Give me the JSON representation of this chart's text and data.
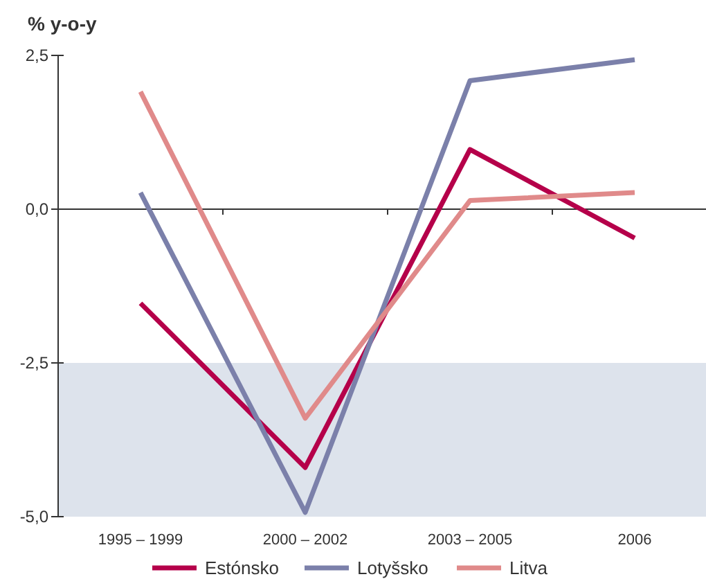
{
  "chart_data": {
    "type": "line",
    "ylabel": "% y-o-y",
    "categories": [
      "1995 – 1999",
      "2000 – 2002",
      "2003 – 2005",
      "2006"
    ],
    "series": [
      {
        "name": "Estónsko",
        "color": "#b5004a",
        "values": [
          -1.53,
          -4.2,
          0.97,
          -0.47
        ]
      },
      {
        "name": "Lotyšsko",
        "color": "#7b80aa",
        "values": [
          0.27,
          -4.93,
          2.09,
          2.43
        ]
      },
      {
        "name": "Litva",
        "color": "#e08a8a",
        "values": [
          1.91,
          -3.4,
          0.14,
          0.27
        ]
      }
    ],
    "ylim": [
      -5,
      2.5
    ],
    "yticks": [
      {
        "value": 2.5,
        "label": "2,5"
      },
      {
        "value": 0,
        "label": "0,0"
      },
      {
        "value": -2.5,
        "label": "-2,5"
      },
      {
        "value": -5,
        "label": "-5,0"
      }
    ],
    "ref_lines": [
      {
        "axis": "y",
        "value": 0,
        "color": "#333333"
      }
    ],
    "bands": [
      {
        "axis": "y",
        "from": -5,
        "to": -2.5,
        "color": "#dde3ec"
      }
    ],
    "legend": "bottom",
    "line_style": "solid"
  }
}
